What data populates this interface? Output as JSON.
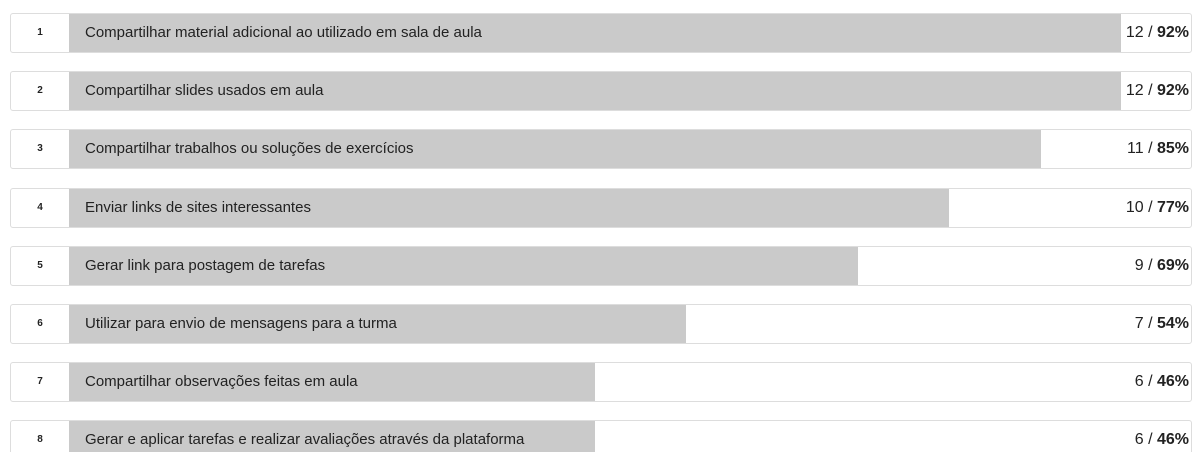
{
  "chart_data": {
    "type": "bar",
    "ranks": [
      1,
      2,
      3,
      4,
      5,
      6,
      7,
      8
    ],
    "categories": [
      "Compartilhar material adicional ao utilizado em sala de aula",
      "Compartilhar slides usados em aula",
      "Compartilhar trabalhos ou soluções de exercícios",
      "Enviar links de sites interessantes",
      "Gerar link para postagem de tarefas",
      "Utilizar para envio de mensagens para a turma",
      "Compartilhar observações feitas em aula",
      "Gerar e aplicar tarefas e realizar avaliações através da plataforma"
    ],
    "counts": [
      12,
      12,
      11,
      10,
      9,
      7,
      6,
      6
    ],
    "separator": "/",
    "values": [
      92,
      92,
      85,
      77,
      69,
      54,
      46,
      46
    ],
    "value_labels": [
      "92%",
      "92%",
      "85%",
      "77%",
      "69%",
      "54%",
      "46%",
      "46%"
    ],
    "color": "#cacaca"
  }
}
